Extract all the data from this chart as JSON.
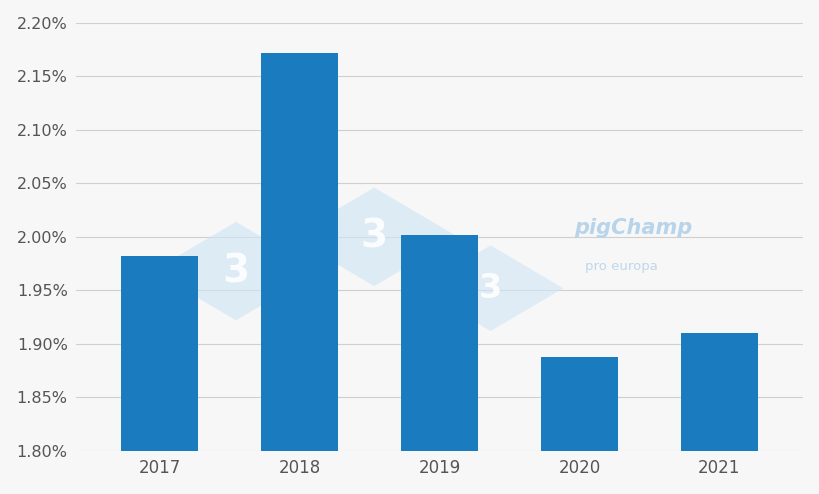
{
  "categories": [
    "2017",
    "2018",
    "2019",
    "2020",
    "2021"
  ],
  "values": [
    0.01982,
    0.02172,
    0.02002,
    0.01888,
    0.0191
  ],
  "bar_color": "#1a7bbf",
  "ylim": [
    0.018,
    0.022
  ],
  "yticks": [
    0.018,
    0.0185,
    0.019,
    0.0195,
    0.02,
    0.0205,
    0.021,
    0.0215,
    0.022
  ],
  "ytick_labels": [
    "1.80%",
    "1.85%",
    "1.90%",
    "1.95%",
    "2.00%",
    "2.05%",
    "2.10%",
    "2.15%",
    "2.20%"
  ],
  "background_color": "#f7f7f7",
  "grid_color": "#d0d0d0",
  "tick_label_color": "#555555",
  "bar_width": 0.55,
  "figsize": [
    8.2,
    4.94
  ],
  "dpi": 100,
  "watermark_diamond_color": "#d0e5f5",
  "watermark_3_color": "#c0d8ee",
  "pigchamp_color": "#b8d4ea"
}
